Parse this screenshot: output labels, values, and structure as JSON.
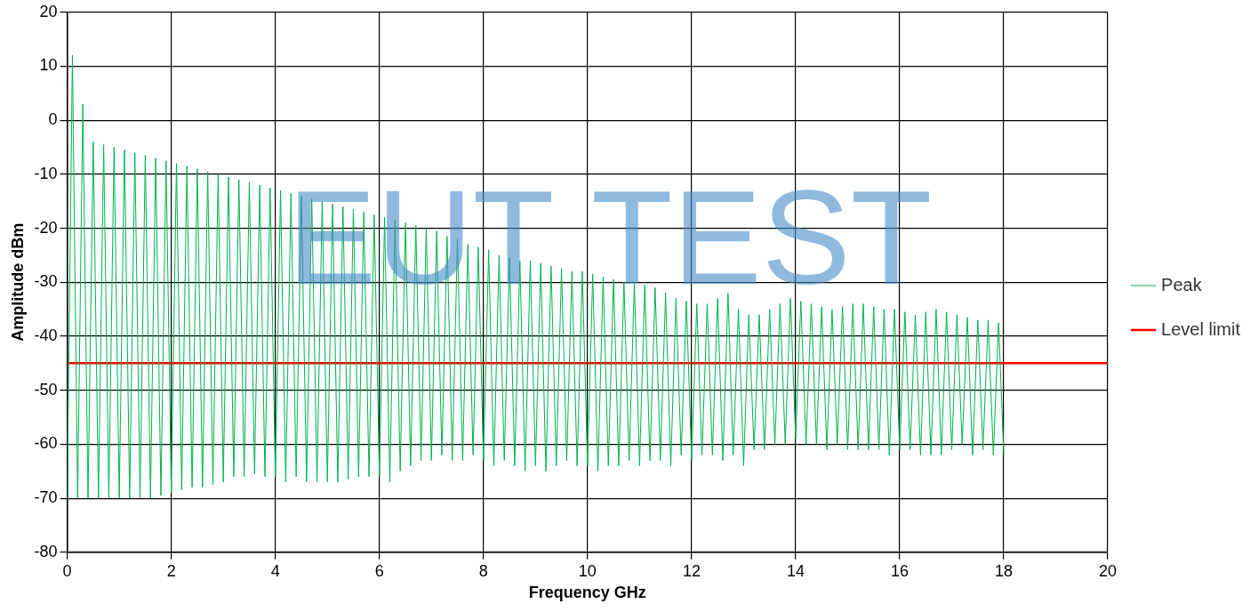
{
  "chart_data": {
    "type": "line",
    "x_label": "Frequency GHz",
    "y_label": "Amplitude dBm",
    "watermark": "EUT TEST",
    "xlim": [
      0,
      20
    ],
    "xticks": [
      0,
      2,
      4,
      6,
      8,
      10,
      12,
      14,
      16,
      18,
      20
    ],
    "ylim": [
      -80,
      20
    ],
    "yticks": [
      -80,
      -70,
      -60,
      -50,
      -40,
      -30,
      -20,
      -10,
      0,
      10,
      20
    ],
    "grid": true,
    "legend": "right",
    "series": [
      {
        "name": "Peak",
        "color": "#00b050",
        "x": [
          0,
          0.1,
          0.2,
          0.3,
          0.4,
          0.5,
          0.6,
          0.7,
          0.8,
          0.9,
          1,
          1.1,
          1.2,
          1.3,
          1.4,
          1.5,
          1.6,
          1.7,
          1.8,
          1.9,
          2,
          2.1,
          2.2,
          2.3,
          2.4,
          2.5,
          2.6,
          2.7,
          2.8,
          2.9,
          3,
          3.1,
          3.2,
          3.3,
          3.4,
          3.5,
          3.6,
          3.7,
          3.8,
          3.9,
          4,
          4.1,
          4.2,
          4.3,
          4.4,
          4.5,
          4.6,
          4.7,
          4.8,
          4.9,
          5,
          5.1,
          5.2,
          5.3,
          5.4,
          5.5,
          5.6,
          5.7,
          5.8,
          5.9,
          6,
          6.1,
          6.2,
          6.3,
          6.4,
          6.5,
          6.6,
          6.7,
          6.8,
          6.9,
          7,
          7.1,
          7.2,
          7.3,
          7.4,
          7.5,
          7.6,
          7.7,
          7.8,
          7.9,
          8,
          8.1,
          8.2,
          8.3,
          8.4,
          8.5,
          8.6,
          8.7,
          8.8,
          8.9,
          9,
          9.1,
          9.2,
          9.3,
          9.4,
          9.5,
          9.6,
          9.7,
          9.8,
          9.9,
          10,
          10.1,
          10.2,
          10.3,
          10.4,
          10.5,
          10.6,
          10.7,
          10.8,
          10.9,
          11,
          11.1,
          11.2,
          11.3,
          11.4,
          11.5,
          11.6,
          11.7,
          11.8,
          11.9,
          12,
          12.1,
          12.2,
          12.3,
          12.4,
          12.5,
          12.6,
          12.7,
          12.8,
          12.9,
          13,
          13.1,
          13.2,
          13.3,
          13.4,
          13.5,
          13.6,
          13.7,
          13.8,
          13.9,
          14,
          14.1,
          14.2,
          14.3,
          14.4,
          14.5,
          14.6,
          14.7,
          14.8,
          14.9,
          15,
          15.1,
          15.2,
          15.3,
          15.4,
          15.5,
          15.6,
          15.7,
          15.8,
          15.9,
          16,
          16.1,
          16.2,
          16.3,
          16.4,
          16.5,
          16.6,
          16.7,
          16.8,
          16.9,
          17,
          17.1,
          17.2,
          17.3,
          17.4,
          17.5,
          17.6,
          17.7,
          17.8,
          17.9,
          18
        ],
        "values": [
          -70,
          12,
          -70,
          3,
          -70,
          -4,
          -70,
          -4.5,
          -70,
          -5,
          -70,
          -5.5,
          -70,
          -6,
          -70,
          -6.5,
          -70,
          -7,
          -69.5,
          -7.5,
          -69,
          -8,
          -68.5,
          -8.5,
          -68,
          -9,
          -68,
          -9.5,
          -67.5,
          -10,
          -67,
          -10.5,
          -66,
          -11,
          -66,
          -11.5,
          -65.5,
          -12,
          -66,
          -12.5,
          -66,
          -13,
          -67,
          -13.5,
          -66,
          -14,
          -67,
          -14.5,
          -67,
          -15,
          -67,
          -15.5,
          -67,
          -16,
          -66.5,
          -16.5,
          -66,
          -17,
          -66,
          -17.5,
          -66,
          -18,
          -67,
          -18.5,
          -65,
          -19,
          -64,
          -19.5,
          -63,
          -20,
          -63,
          -20.5,
          -62,
          -21.5,
          -63,
          -22,
          -63,
          -23,
          -62,
          -23.5,
          -63,
          -24,
          -64,
          -25,
          -63,
          -25.5,
          -64,
          -26,
          -65,
          -26,
          -64,
          -26.5,
          -65,
          -27,
          -64,
          -27.5,
          -63,
          -28,
          -64,
          -28,
          -64,
          -28.5,
          -65,
          -29,
          -64,
          -29.5,
          -64,
          -30,
          -63,
          -30,
          -64,
          -30.5,
          -63,
          -31,
          -63,
          -32,
          -64,
          -33,
          -62,
          -33.5,
          -63,
          -34,
          -62,
          -34,
          -62,
          -33,
          -63,
          -32,
          -62,
          -35,
          -64,
          -36,
          -61,
          -36,
          -61,
          -35,
          -60,
          -34,
          -60,
          -33,
          -59,
          -33.5,
          -60,
          -34,
          -60,
          -34.5,
          -61,
          -35,
          -60,
          -34.5,
          -61,
          -34,
          -61,
          -34,
          -61,
          -34.5,
          -61,
          -35,
          -62,
          -35,
          -61,
          -35.5,
          -61,
          -36,
          -62,
          -35.5,
          -62,
          -35,
          -62,
          -35.5,
          -61,
          -36,
          -60,
          -36.5,
          -62,
          -37,
          -61,
          -37,
          -62,
          -37.5,
          -62
        ]
      },
      {
        "name": "Level limit",
        "color": "#ff0000",
        "x": [
          0,
          20
        ],
        "values": [
          -45,
          -45
        ]
      }
    ]
  }
}
